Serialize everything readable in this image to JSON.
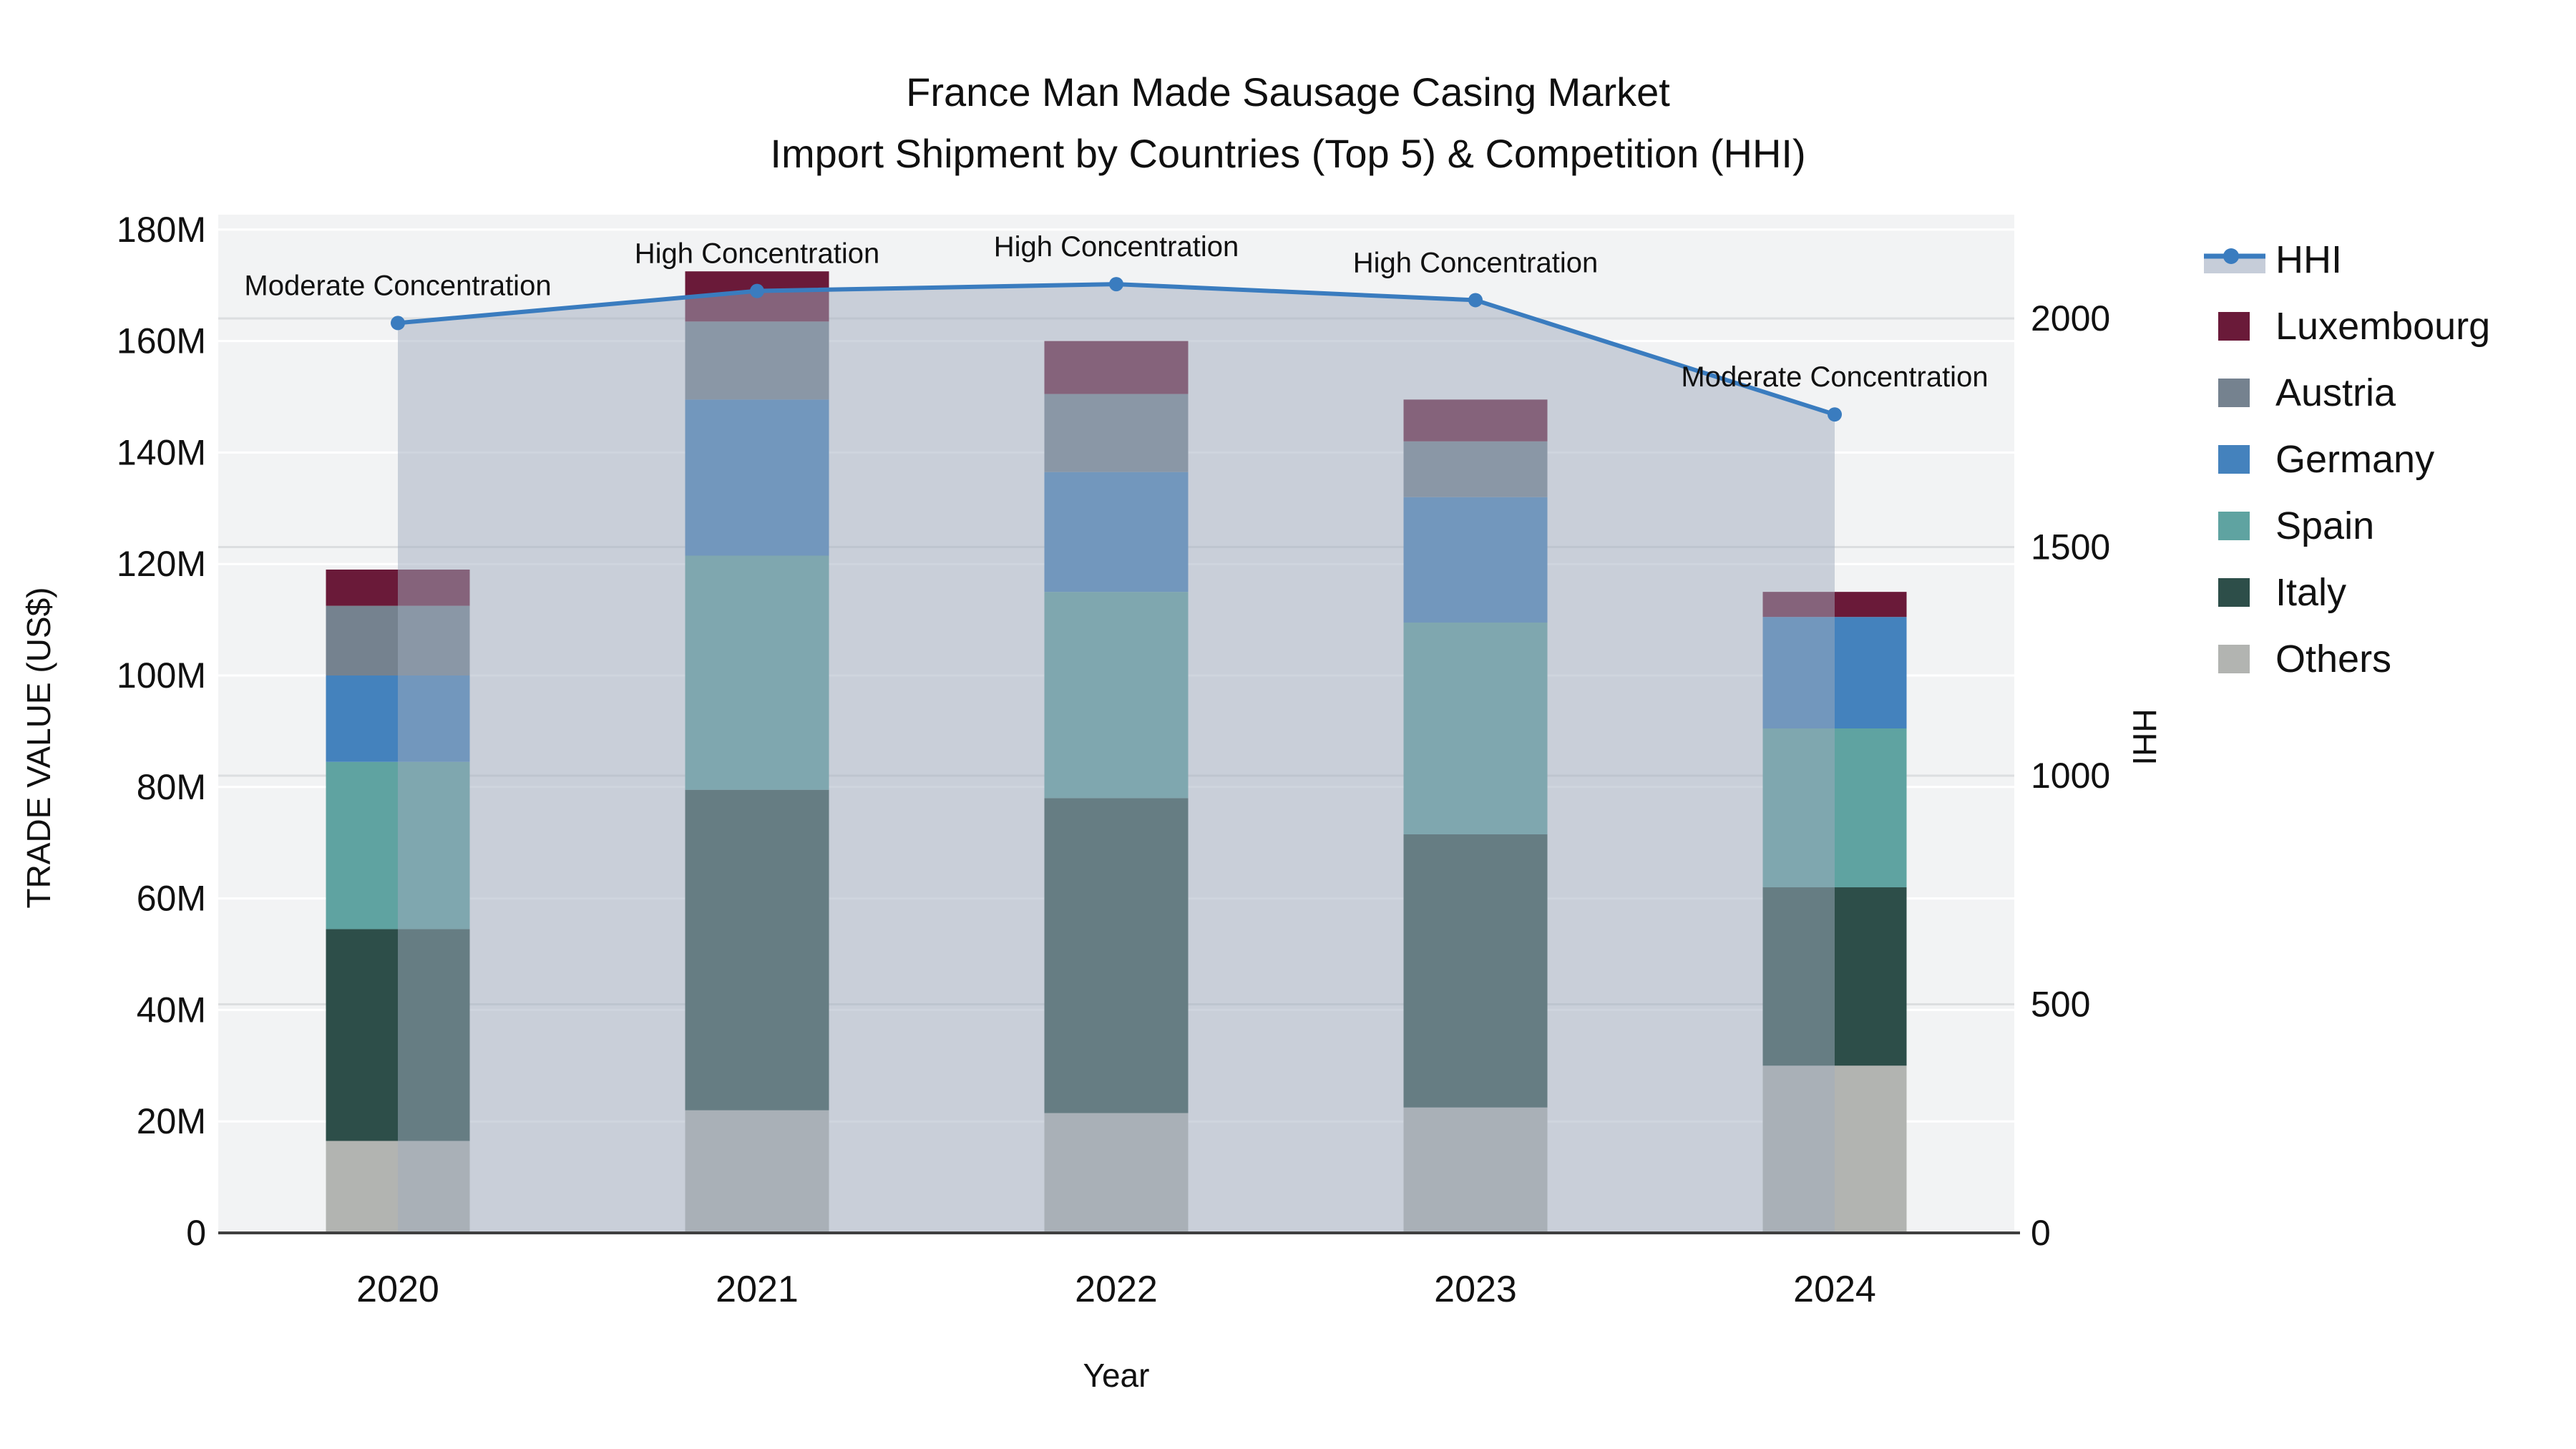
{
  "title": {
    "line1": "France Man Made Sausage Casing Market",
    "line2": "Import Shipment by Countries (Top 5) & Competition (HHI)"
  },
  "axes": {
    "x": {
      "title": "Year",
      "categories": [
        "2020",
        "2021",
        "2022",
        "2023",
        "2024"
      ]
    },
    "y_left": {
      "title": "TRADE VALUE (US$)",
      "tick_labels": [
        "0",
        "20M",
        "40M",
        "60M",
        "80M",
        "100M",
        "120M",
        "140M",
        "160M",
        "180M"
      ],
      "tick_values_m": [
        0,
        20,
        40,
        60,
        80,
        100,
        120,
        140,
        160,
        180
      ],
      "range_m": [
        0,
        182.6
      ]
    },
    "y_right": {
      "title": "HHI",
      "tick_labels": [
        "0",
        "500",
        "1000",
        "1500",
        "2000"
      ],
      "tick_values": [
        0,
        500,
        1000,
        1500,
        2000
      ],
      "range": [
        0,
        2227
      ]
    }
  },
  "chart_data": {
    "type": "stacked_bar_with_line",
    "title": "France Man Made Sausage Casing Market Import Shipment by Countries (Top 5) & Competition (HHI)",
    "xlabel": "Year",
    "ylabel_left": "TRADE VALUE (US$)",
    "ylabel_right": "HHI",
    "categories": [
      "2020",
      "2021",
      "2022",
      "2023",
      "2024"
    ],
    "bar_value_unit": "million US$",
    "series": [
      {
        "name": "Others",
        "color": "#b2b4b1",
        "values": [
          16.5,
          22.0,
          21.5,
          22.5,
          30.0
        ]
      },
      {
        "name": "Italy",
        "color": "#2d4e49",
        "values": [
          38.0,
          57.5,
          56.5,
          49.0,
          32.0
        ]
      },
      {
        "name": "Spain",
        "color": "#5fa3a1",
        "values": [
          30.0,
          42.0,
          37.0,
          38.0,
          28.5
        ]
      },
      {
        "name": "Germany",
        "color": "#4482bd",
        "values": [
          15.5,
          28.0,
          21.5,
          22.5,
          20.0
        ]
      },
      {
        "name": "Austria",
        "color": "#75828f",
        "values": [
          12.5,
          14.0,
          14.0,
          10.0,
          0.0
        ]
      },
      {
        "name": "Luxembourg",
        "color": "#6a1a39",
        "values": [
          6.5,
          9.0,
          9.5,
          7.5,
          4.5
        ]
      }
    ],
    "bar_totals": [
      119.0,
      172.5,
      160.0,
      149.5,
      115.0
    ],
    "line_series": {
      "name": "HHI",
      "axis": "right",
      "color": "#3a7cbf",
      "area_fill_color": "#9fabbd",
      "area_fill_opacity": 0.5,
      "values": [
        1990,
        2060,
        2075,
        2040,
        1790
      ]
    },
    "point_annotations": [
      "Moderate Concentration",
      "High Concentration",
      "High Concentration",
      "High Concentration",
      "Moderate Concentration"
    ],
    "legend_position": "top-right-outside",
    "grid": "on"
  },
  "legend": {
    "items": [
      {
        "label": "HHI",
        "type": "line-marker-area",
        "color": "#3a7cbf",
        "band_color": "#c6cdd9"
      },
      {
        "label": "Luxembourg",
        "type": "swatch",
        "color": "#6a1a39"
      },
      {
        "label": "Austria",
        "type": "swatch",
        "color": "#75828f"
      },
      {
        "label": "Germany",
        "type": "swatch",
        "color": "#4482bd"
      },
      {
        "label": "Spain",
        "type": "swatch",
        "color": "#5fa3a1"
      },
      {
        "label": "Italy",
        "type": "swatch",
        "color": "#2d4e49"
      },
      {
        "label": "Others",
        "type": "swatch",
        "color": "#b2b4b1"
      }
    ]
  },
  "styles": {
    "plot_bg": "#f2f3f4",
    "grid_left": "#ffffff",
    "grid_right": "#dcdee0",
    "axis_line": "#3f3f3f",
    "text_color": "#111111"
  }
}
